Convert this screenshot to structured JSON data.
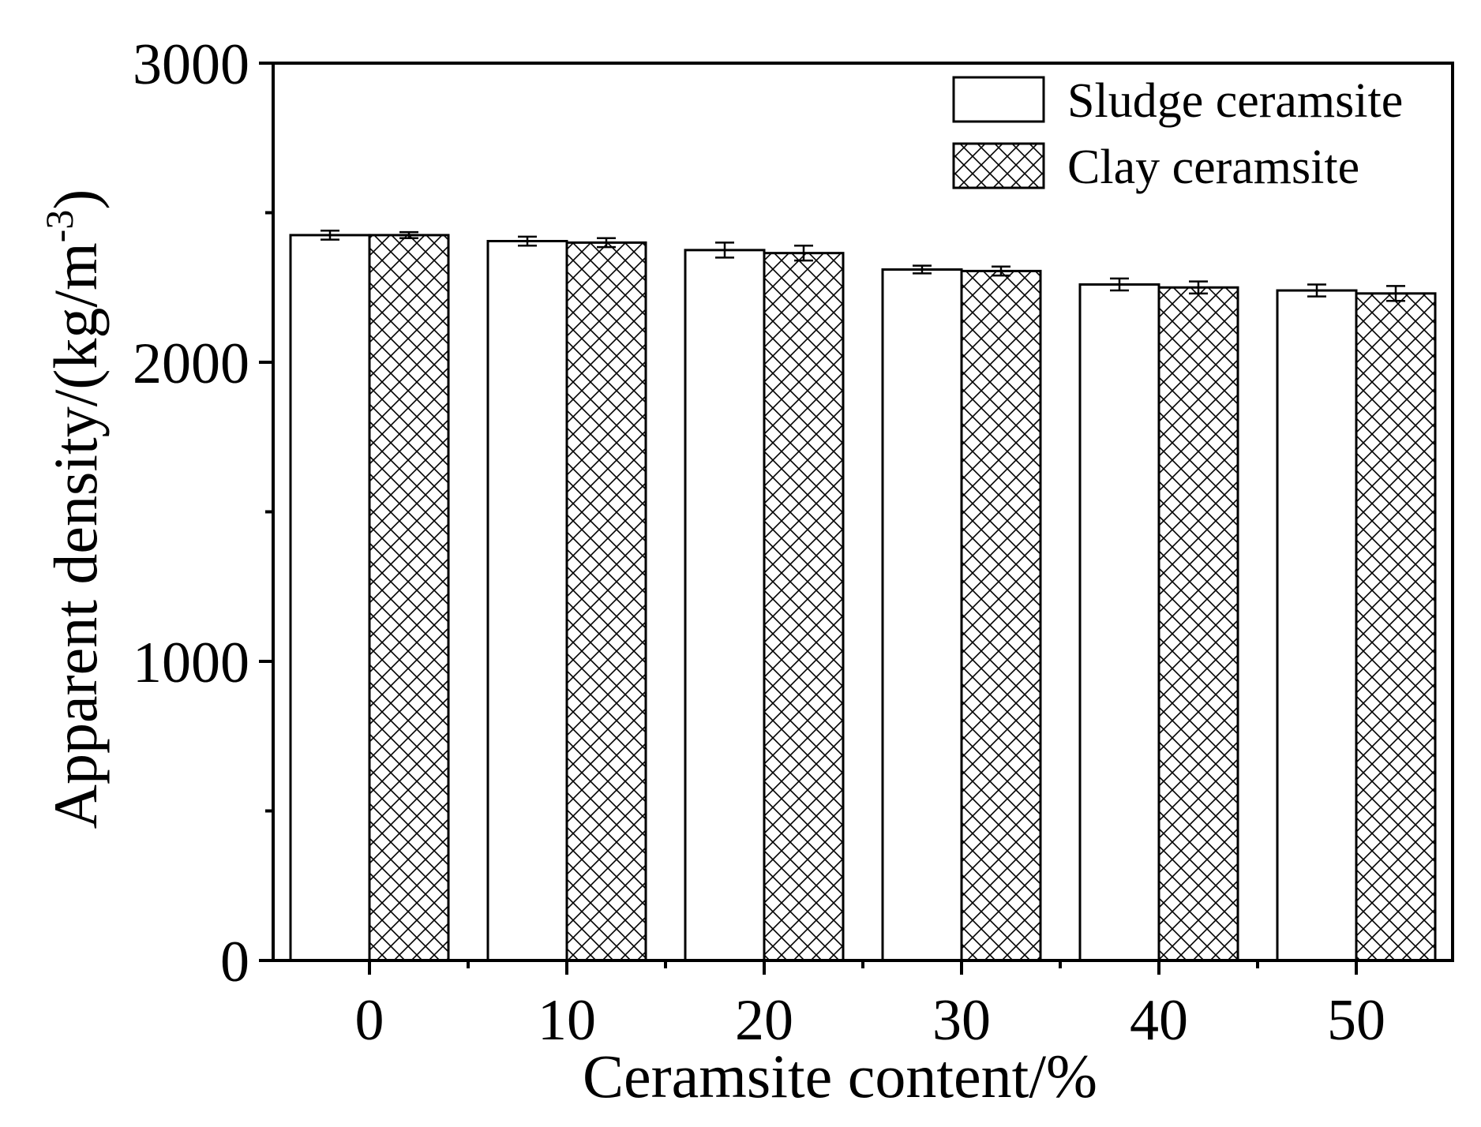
{
  "chart_data": {
    "type": "bar",
    "xlabel": "Ceramsite content/%",
    "ylabel": "Apparent density/(kg/m",
    "ylabel_sup": "-3",
    "ylabel_close": ")",
    "categories": [
      "0",
      "10",
      "20",
      "30",
      "40",
      "50"
    ],
    "ylim": [
      0,
      3000
    ],
    "yticks": [
      "0",
      "1000",
      "2000",
      "3000"
    ],
    "legend_position": "top-right",
    "series": [
      {
        "name": "Sludge ceramsite",
        "pattern": "none",
        "values": [
          2425,
          2405,
          2375,
          2310,
          2260,
          2240
        ],
        "errors": [
          15,
          15,
          25,
          13,
          20,
          20
        ]
      },
      {
        "name": "Clay ceramsite",
        "pattern": "crosshatch",
        "values": [
          2425,
          2400,
          2365,
          2305,
          2250,
          2230
        ],
        "errors": [
          10,
          15,
          25,
          15,
          20,
          25
        ]
      }
    ],
    "grid": false
  },
  "colors": {
    "bar_fill": "#ffffff",
    "stroke": "#000000",
    "hatch": "#000000"
  }
}
